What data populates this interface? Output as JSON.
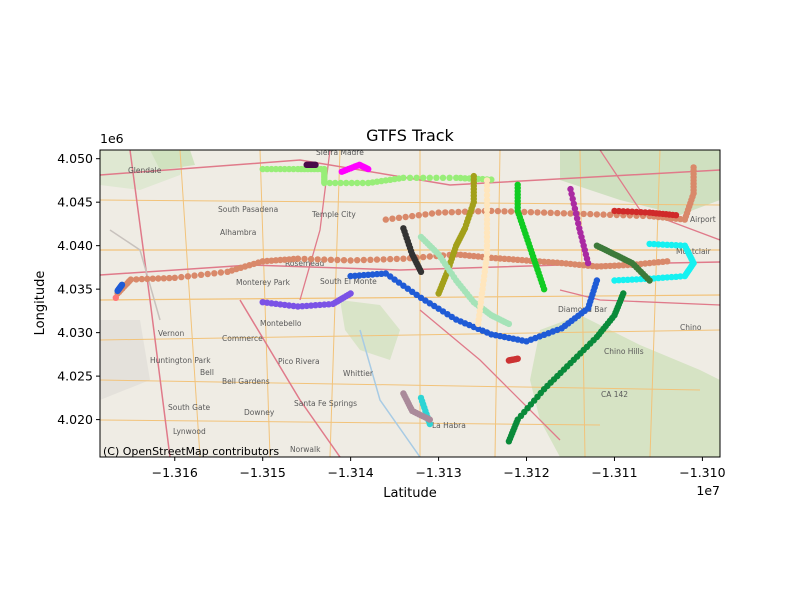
{
  "figure": {
    "title": "GTFS Track",
    "xlabel": "Latitude",
    "ylabel": "Longitude",
    "x_offset": "1e7",
    "y_offset": "1e6",
    "attribution": "(C) OpenStreetMap contributors"
  },
  "chart_data": {
    "type": "scatter",
    "title": "GTFS Track",
    "xlabel": "Latitude",
    "ylabel": "Longitude",
    "xlim": [
      -13168500,
      -13098000
    ],
    "ylim": [
      4015700,
      4051000
    ],
    "x_ticks": [
      {
        "value": -13160000,
        "label": "−1.316"
      },
      {
        "value": -13150000,
        "label": "−1.315"
      },
      {
        "value": -13140000,
        "label": "−1.314"
      },
      {
        "value": -13130000,
        "label": "−1.313"
      },
      {
        "value": -13120000,
        "label": "−1.312"
      },
      {
        "value": -13110000,
        "label": "−1.311"
      },
      {
        "value": -13100000,
        "label": "−1.310"
      }
    ],
    "y_ticks": [
      {
        "value": 4020000,
        "label": "4.020"
      },
      {
        "value": 4025000,
        "label": "4.025"
      },
      {
        "value": 4030000,
        "label": "4.030"
      },
      {
        "value": 4035000,
        "label": "4.035"
      },
      {
        "value": 4040000,
        "label": "4.040"
      },
      {
        "value": 4045000,
        "label": "4.045"
      },
      {
        "value": 4050000,
        "label": "4.050"
      }
    ],
    "grid": false,
    "series": [
      {
        "color": "#d9896a",
        "points": [
          [
            -13166500,
            4034500
          ],
          [
            -13165000,
            4036100
          ],
          [
            -13160000,
            4036300
          ],
          [
            -13154000,
            4037000
          ],
          [
            -13150000,
            4038200
          ],
          [
            -13146000,
            4038500
          ],
          [
            -13140000,
            4038300
          ],
          [
            -13134000,
            4038500
          ],
          [
            -13128000,
            4039000
          ],
          [
            -13124000,
            4038600
          ],
          [
            -13120000,
            4038300
          ],
          [
            -13116000,
            4038000
          ],
          [
            -13112000,
            4037600
          ],
          [
            -13108000,
            4037800
          ],
          [
            -13104000,
            4038200
          ]
        ]
      },
      {
        "color": "#d9896a",
        "points": [
          [
            -13136000,
            4043000
          ],
          [
            -13130000,
            4043800
          ],
          [
            -13124000,
            4044000
          ],
          [
            -13118000,
            4043800
          ],
          [
            -13112000,
            4043600
          ],
          [
            -13106000,
            4043400
          ],
          [
            -13102000,
            4043000
          ],
          [
            -13101000,
            4046000
          ],
          [
            -13101000,
            4049000
          ]
        ]
      },
      {
        "color": "#98ee78",
        "points": [
          [
            -13150000,
            4048800
          ],
          [
            -13146000,
            4048800
          ],
          [
            -13143000,
            4048800
          ],
          [
            -13143000,
            4047200
          ],
          [
            -13138000,
            4047200
          ],
          [
            -13134000,
            4047800
          ],
          [
            -13128000,
            4047800
          ],
          [
            -13124000,
            4047600
          ]
        ]
      },
      {
        "color": "#1f5bd6",
        "points": [
          [
            -13140000,
            4036500
          ],
          [
            -13136000,
            4036800
          ],
          [
            -13132000,
            4034000
          ],
          [
            -13128000,
            4031500
          ],
          [
            -13124000,
            4029800
          ],
          [
            -13120000,
            4029000
          ],
          [
            -13116000,
            4030500
          ],
          [
            -13113000,
            4032800
          ],
          [
            -13112000,
            4036000
          ]
        ]
      },
      {
        "color": "#16f1f1",
        "points": [
          [
            -13110000,
            4036000
          ],
          [
            -13106000,
            4036200
          ],
          [
            -13102000,
            4036500
          ],
          [
            -13101000,
            4038000
          ],
          [
            -13102000,
            4040000
          ],
          [
            -13106000,
            4040200
          ]
        ]
      },
      {
        "color": "#0a8a3a",
        "points": [
          [
            -13122000,
            4017500
          ],
          [
            -13121000,
            4020000
          ],
          [
            -13118000,
            4023500
          ],
          [
            -13115000,
            4026500
          ],
          [
            -13112000,
            4029500
          ],
          [
            -13110000,
            4032000
          ],
          [
            -13109000,
            4034500
          ]
        ]
      },
      {
        "color": "#1f5bd6",
        "points": [
          [
            -13166500,
            4034800
          ],
          [
            -13166000,
            4035500
          ]
        ]
      },
      {
        "color": "#ff00ff",
        "points": [
          [
            -13141000,
            4048500
          ],
          [
            -13139000,
            4049300
          ],
          [
            -13138000,
            4048800
          ]
        ]
      },
      {
        "color": "#4a0a4a",
        "points": [
          [
            -13145000,
            4049300
          ],
          [
            -13144000,
            4049300
          ]
        ]
      },
      {
        "color": "#a3a01a",
        "points": [
          [
            -13126000,
            4048000
          ],
          [
            -13126000,
            4045000
          ],
          [
            -13127000,
            4042000
          ],
          [
            -13128000,
            4040000
          ],
          [
            -13129000,
            4037000
          ],
          [
            -13130000,
            4034500
          ]
        ]
      },
      {
        "color": "#a5e3b8",
        "points": [
          [
            -13132000,
            4041000
          ],
          [
            -13130000,
            4039000
          ],
          [
            -13128000,
            4036000
          ],
          [
            -13126000,
            4033500
          ],
          [
            -13124000,
            4032000
          ],
          [
            -13122000,
            4031000
          ]
        ]
      },
      {
        "color": "#11cc22",
        "points": [
          [
            -13121000,
            4047000
          ],
          [
            -13121000,
            4044000
          ],
          [
            -13120000,
            4041000
          ],
          [
            -13119000,
            4038000
          ],
          [
            -13118000,
            4035000
          ]
        ]
      },
      {
        "color": "#ffe6bd",
        "points": [
          [
            -13124500,
            4047500
          ],
          [
            -13124500,
            4043000
          ],
          [
            -13124500,
            4039000
          ],
          [
            -13125000,
            4035000
          ],
          [
            -13125500,
            4031000
          ]
        ]
      },
      {
        "color": "#7b52e6",
        "points": [
          [
            -13150000,
            4033500
          ],
          [
            -13146000,
            4033000
          ],
          [
            -13142000,
            4033300
          ],
          [
            -13140000,
            4034500
          ]
        ]
      },
      {
        "color": "#3d7a3a",
        "points": [
          [
            -13112000,
            4040000
          ],
          [
            -13110000,
            4039000
          ],
          [
            -13108000,
            4038000
          ],
          [
            -13106000,
            4036000
          ]
        ]
      },
      {
        "color": "#aa2aa2",
        "points": [
          [
            -13115000,
            4046500
          ],
          [
            -13114000,
            4042000
          ],
          [
            -13113000,
            4038000
          ]
        ]
      },
      {
        "color": "#333333",
        "points": [
          [
            -13134000,
            4042000
          ],
          [
            -13133000,
            4039000
          ],
          [
            -13132000,
            4037000
          ]
        ]
      },
      {
        "color": "#d02a2a",
        "points": [
          [
            -13110000,
            4044000
          ],
          [
            -13106000,
            4043800
          ],
          [
            -13103000,
            4043500
          ]
        ]
      },
      {
        "color": "#2dd4d4",
        "points": [
          [
            -13132000,
            4022500
          ],
          [
            -13131000,
            4019500
          ]
        ]
      },
      {
        "color": "#aa8a9a",
        "points": [
          [
            -13134000,
            4023000
          ],
          [
            -13133000,
            4021000
          ],
          [
            -13131000,
            4020000
          ]
        ]
      },
      {
        "color": "#ff7777",
        "points": [
          [
            -13166700,
            4034000
          ]
        ]
      },
      {
        "color": "#cc3333",
        "points": [
          [
            -13122000,
            4026800
          ],
          [
            -13121000,
            4027000
          ]
        ]
      }
    ]
  },
  "map_labels": {
    "glendale": "Glendale",
    "south_pasadena": "South Pasadena",
    "temple_city": "Temple City",
    "alhambra": "Alhambra",
    "rosemead": "Rosemead",
    "monterey_park": "Monterey Park",
    "south_el_monte": "South El Monte",
    "montebello": "Montebello",
    "vernon": "Vernon",
    "commerce": "Commerce",
    "huntington_park": "Huntington Park",
    "bell": "Bell",
    "bell_gardens": "Bell Gardens",
    "pico_rivera": "Pico Rivera",
    "whittier": "Whittier",
    "south_gate": "South Gate",
    "downey": "Downey",
    "santa_fe_springs": "Santa Fe Springs",
    "lynwood": "Lynwood",
    "norwalk": "Norwalk",
    "la_habra": "La Habra",
    "diamond_bar": "Diamond Bar",
    "chino": "Chino",
    "chino_hills": "Chino Hills",
    "montclair": "Montclair",
    "airport": "Airport",
    "sierra_madre": "Sierra Madre",
    "ca_142": "CA 142"
  }
}
